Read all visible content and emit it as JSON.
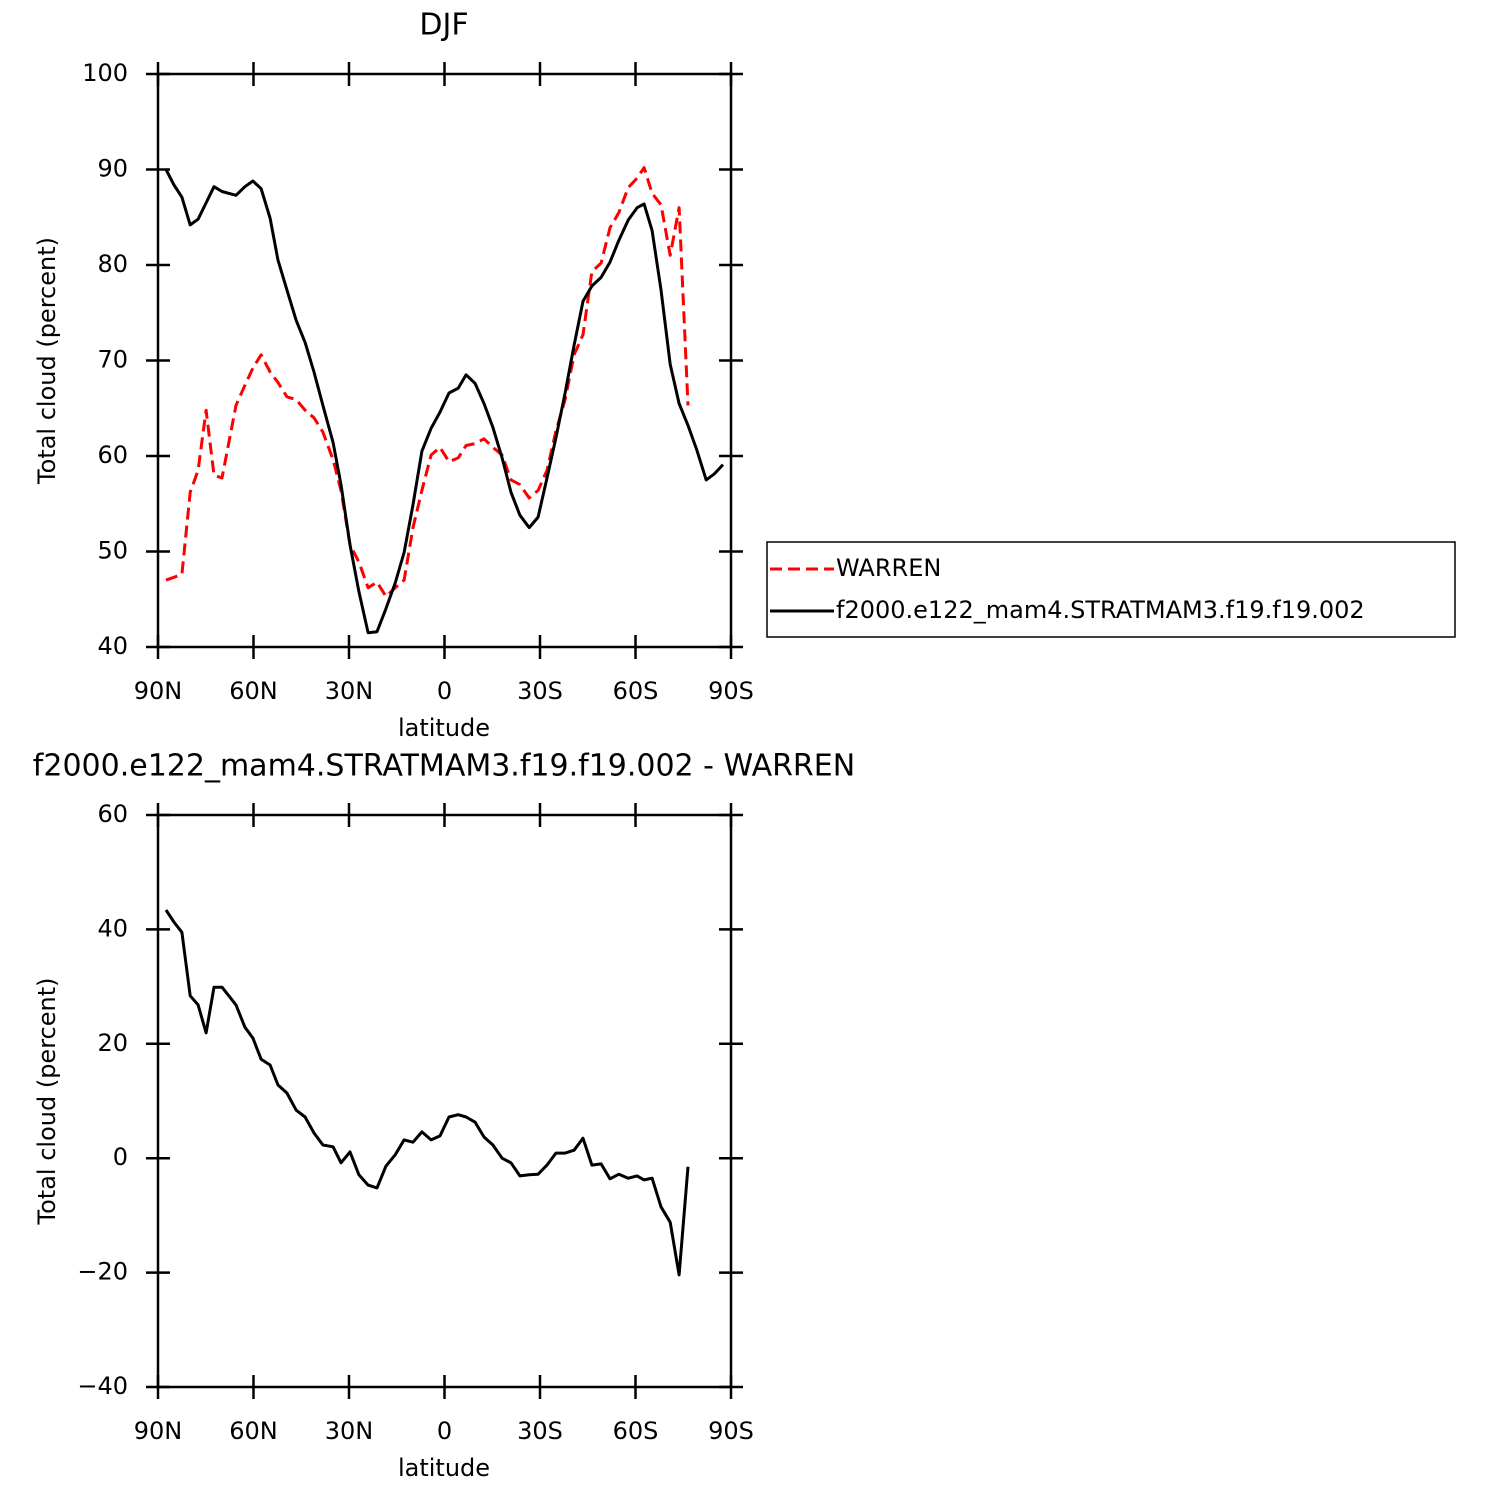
{
  "chart_data": [
    {
      "type": "line",
      "title": "DJF",
      "x_label": "latitude",
      "y_label": "Total cloud (percent)",
      "x": [
        87.5,
        85.0,
        82.5,
        79.9,
        77.4,
        74.9,
        72.4,
        69.9,
        65.5,
        62.7,
        60.2,
        57.6,
        54.8,
        52.3,
        49.5,
        46.6,
        43.8,
        41.0,
        38.2,
        35.0,
        32.5,
        29.7,
        26.9,
        24.0,
        21.2,
        18.4,
        15.5,
        12.7,
        9.9,
        7.1,
        4.2,
        1.4,
        -1.4,
        -4.3,
        -6.8,
        -9.6,
        -12.4,
        -15.2,
        -18.1,
        -20.9,
        -23.7,
        -26.6,
        -29.4,
        -32.2,
        -35.0,
        -37.9,
        -40.7,
        -43.5,
        -46.3,
        -49.2,
        -52.0,
        -54.8,
        -57.7,
        -60.5,
        -62.7,
        -65.2,
        -68.0,
        -70.9,
        -73.7,
        -76.5,
        -79.3,
        -82.2,
        -84.7,
        -87.5
      ],
      "xlim": [
        90,
        -90
      ],
      "xticks": [
        {
          "value": 90,
          "label": "90N"
        },
        {
          "value": 60,
          "label": "60N"
        },
        {
          "value": 30,
          "label": "30N"
        },
        0,
        {
          "value": -30,
          "label": "30S"
        },
        {
          "value": -60,
          "label": "60S"
        },
        {
          "value": -90,
          "label": "90S"
        }
      ],
      "ylim": [
        40,
        100
      ],
      "yticks": [
        40,
        50,
        60,
        70,
        80,
        90,
        100
      ],
      "legend": "outside-right",
      "series": [
        {
          "name": "WARREN",
          "color": "#ff0000",
          "dash": true,
          "values": [
            47.0,
            47.3,
            47.6,
            56.2,
            58.5,
            64.8,
            58.0,
            57.7,
            65.3,
            67.4,
            69.2,
            70.6,
            68.8,
            67.7,
            66.2,
            65.9,
            64.8,
            64.0,
            62.5,
            59.6,
            56.4,
            50.7,
            48.9,
            46.2,
            46.8,
            45.3,
            46.2,
            47.0,
            52.5,
            56.4,
            60.1,
            60.9,
            59.4,
            59.8,
            61.1,
            61.3,
            61.8,
            60.9,
            60.1,
            57.5,
            57.0,
            55.6,
            56.4,
            58.5,
            62.6,
            65.9,
            70.6,
            72.7,
            79.3,
            80.2,
            83.9,
            85.5,
            88.1,
            89.1,
            90.2,
            87.5,
            86.3,
            81.0,
            86.0,
            65.3,
            null,
            null,
            null,
            null
          ]
        },
        {
          "name": "f2000.e122_mam4.STRATMAM3.f19.f19.002",
          "color": "#000000",
          "dash": false,
          "values": [
            90.0,
            88.4,
            87.1,
            84.2,
            84.8,
            86.5,
            88.2,
            87.7,
            87.3,
            88.2,
            88.8,
            88.0,
            84.9,
            80.5,
            77.4,
            74.2,
            71.9,
            68.8,
            65.3,
            61.4,
            57.0,
            50.7,
            45.8,
            41.5,
            41.6,
            44.0,
            46.7,
            49.9,
            54.9,
            60.5,
            62.9,
            64.6,
            66.6,
            67.1,
            68.5,
            67.6,
            65.5,
            63.0,
            59.8,
            56.2,
            53.8,
            52.5,
            53.6,
            57.7,
            61.9,
            66.6,
            71.6,
            76.2,
            77.8,
            78.7,
            80.3,
            82.6,
            84.7,
            86.0,
            86.4,
            83.6,
            77.4,
            69.6,
            65.5,
            63.2,
            60.6,
            57.5,
            58.1,
            59.1
          ]
        }
      ]
    },
    {
      "type": "line",
      "title": "f2000.e122_mam4.STRATMAM3.f19.f19.002 - WARREN",
      "x_label": "latitude",
      "y_label": "Total cloud (percent)",
      "x": [
        87.5,
        85.0,
        82.5,
        79.9,
        77.4,
        74.9,
        72.4,
        69.9,
        65.5,
        62.7,
        60.2,
        57.6,
        54.8,
        52.3,
        49.5,
        46.6,
        43.8,
        41.0,
        38.2,
        35.0,
        32.5,
        29.7,
        26.9,
        24.0,
        21.2,
        18.4,
        15.5,
        12.7,
        9.9,
        7.1,
        4.2,
        1.4,
        -1.4,
        -4.3,
        -6.8,
        -9.6,
        -12.4,
        -15.2,
        -18.1,
        -20.9,
        -23.7,
        -26.6,
        -29.4,
        -32.2,
        -35.0,
        -37.9,
        -40.7,
        -43.5,
        -46.3,
        -49.2,
        -52.0,
        -54.8,
        -57.7,
        -60.5,
        -62.7,
        -65.2,
        -68.0,
        -70.9,
        -73.7,
        -76.5,
        -79.3,
        -82.2,
        -84.7,
        -87.5
      ],
      "xlim": [
        90,
        -90
      ],
      "xticks": [
        {
          "value": 90,
          "label": "90N"
        },
        {
          "value": 60,
          "label": "60N"
        },
        {
          "value": 30,
          "label": "30N"
        },
        0,
        {
          "value": -30,
          "label": "30S"
        },
        {
          "value": -60,
          "label": "60S"
        },
        {
          "value": -90,
          "label": "90S"
        }
      ],
      "ylim": [
        -40,
        60
      ],
      "yticks": [
        {
          "value": -40,
          "label": "−40"
        },
        {
          "value": -20,
          "label": "−20"
        },
        0,
        20,
        40,
        60
      ],
      "series": [
        {
          "color": "#000000",
          "dash": false,
          "values": [
            43.4,
            41.3,
            39.5,
            28.4,
            26.8,
            21.9,
            29.9,
            29.9,
            26.8,
            22.9,
            21.0,
            17.3,
            16.3,
            12.8,
            11.4,
            8.4,
            7.2,
            4.4,
            2.3,
            2.0,
            -0.8,
            1.1,
            -2.9,
            -4.7,
            -5.2,
            -1.4,
            0.6,
            3.2,
            2.8,
            4.6,
            3.2,
            3.9,
            7.2,
            7.6,
            7.2,
            6.3,
            3.7,
            2.3,
            0.0,
            -0.8,
            -3.1,
            -2.9,
            -2.8,
            -1.2,
            0.9,
            0.9,
            1.4,
            3.5,
            -1.2,
            -1.0,
            -3.6,
            -2.8,
            -3.5,
            -3.1,
            -3.8,
            -3.5,
            -8.5,
            -11.2,
            -20.4,
            -1.5,
            null,
            null,
            null,
            null
          ]
        }
      ]
    }
  ]
}
